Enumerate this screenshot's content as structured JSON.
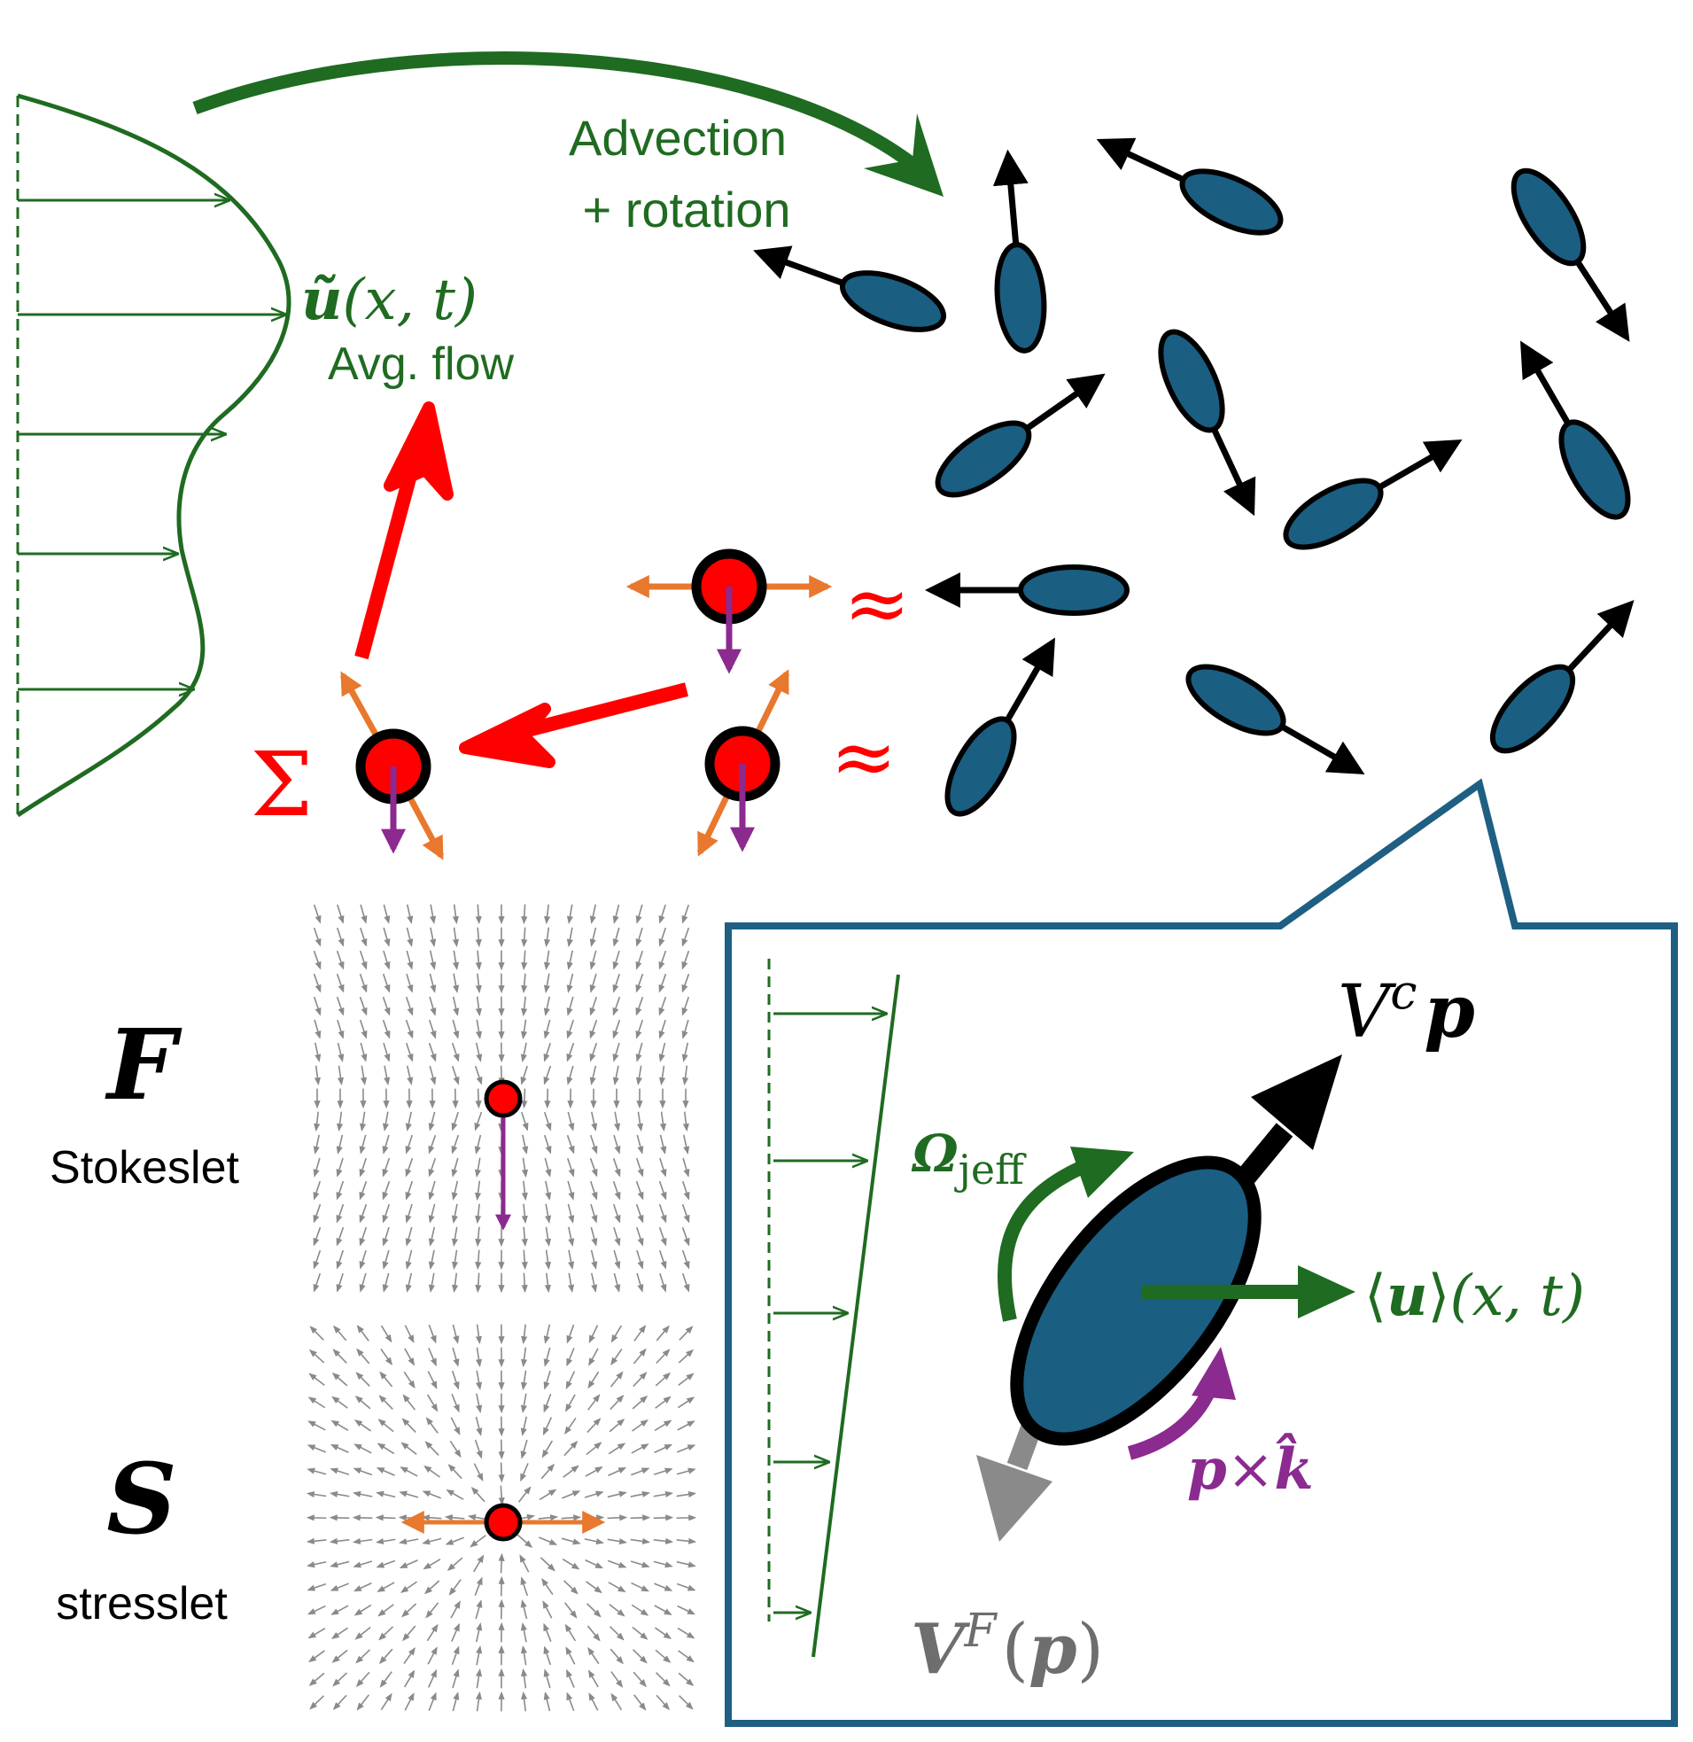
{
  "colors": {
    "green": "#1f6b21",
    "blue": "#1a5e82",
    "red": "#ff0000",
    "orange": "#e8782d",
    "purple": "#8b2a8f",
    "black": "#000000",
    "gray": "#8a8a8a",
    "frame": "#1e5f83"
  },
  "labels": {
    "advection_line1": "Advection",
    "advection_line2": "+ rotation",
    "avg_flow_symbol_u": "ũ",
    "avg_flow_symbol_args": "(x, t)",
    "avg_flow_text": "Avg. flow",
    "sum": "Σ",
    "approx_top": "≈",
    "approx_bottom": "≈",
    "F_symbol": "F",
    "F_name": "Stokeslet",
    "S_symbol": "S",
    "S_name": "stresslet"
  },
  "inset": {
    "Vc_V": "V",
    "Vc_sup": "c",
    "Vc_p": "p",
    "omega": "Ω",
    "omega_sub": "jeff",
    "mean_u_open": "⟨",
    "mean_u_u": "u",
    "mean_u_close": "⟩",
    "mean_u_args": "(x, t)",
    "pk_p": "p",
    "pk_times": "×",
    "pk_k": "k̂",
    "VF_V": "V",
    "VF_sup": "F",
    "VF_args_open": "(",
    "VF_p": "p",
    "VF_args_close": ")"
  },
  "icons": [
    "flow-profile-arrows",
    "swimmer-ellipse",
    "stokeslet-field",
    "stresslet-field",
    "jeffery-rotation-arrow"
  ]
}
